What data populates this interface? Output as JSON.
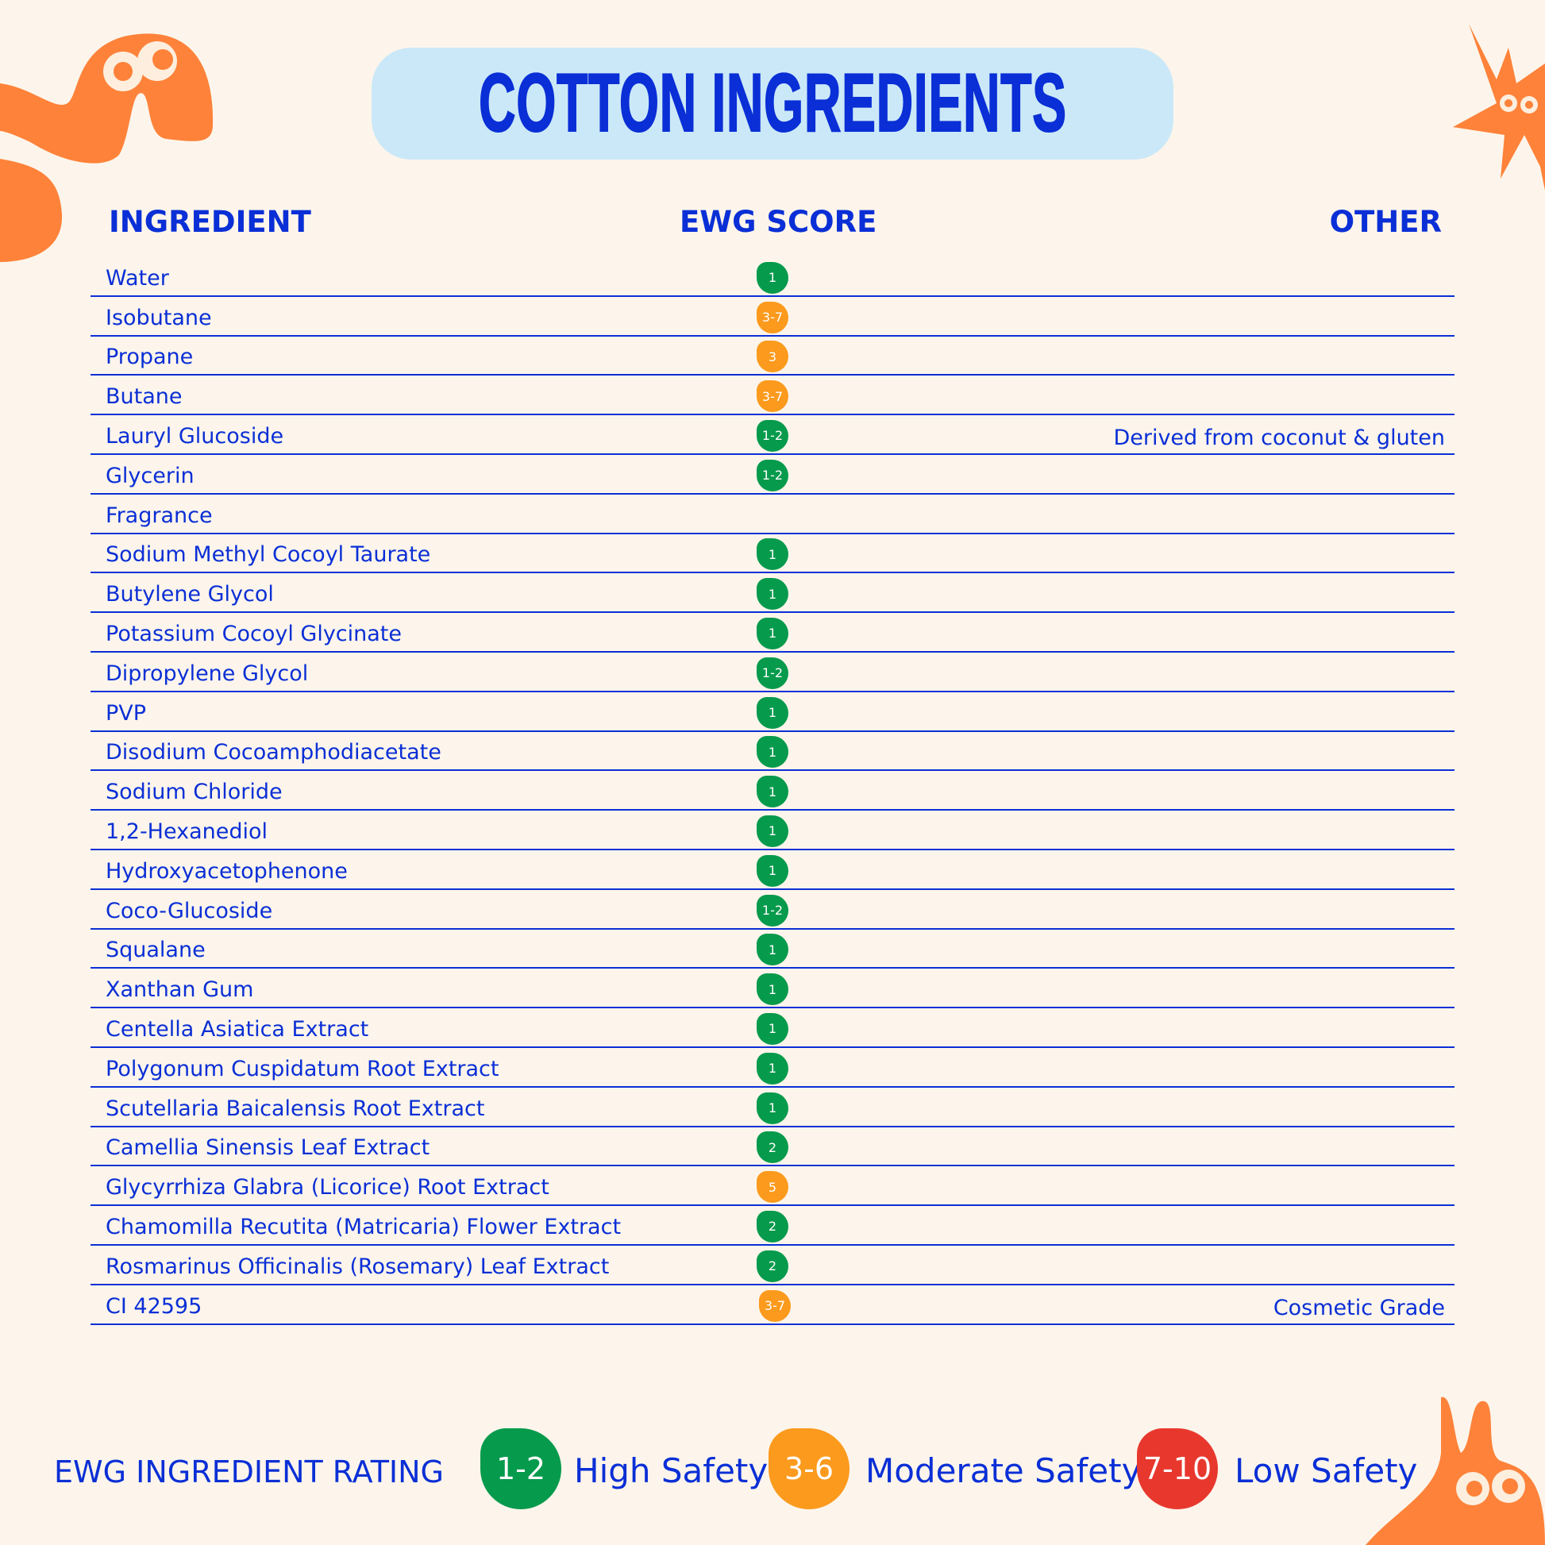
{
  "title": "COTTON INGREDIENTS",
  "headers": {
    "ingredient": "INGREDIENT",
    "score": "EWG SCORE",
    "other": "OTHER"
  },
  "colors": {
    "high": "#069a4c",
    "moderate": "#fb9a1d",
    "low": "#e8382e",
    "accent": "#0a2fd6",
    "decor": "#fe8239"
  },
  "rows": [
    {
      "name": "Water",
      "score": "1",
      "level": "high",
      "other": ""
    },
    {
      "name": "Isobutane",
      "score": "3-7",
      "level": "moderate",
      "other": ""
    },
    {
      "name": "Propane",
      "score": "3",
      "level": "moderate",
      "other": ""
    },
    {
      "name": "Butane",
      "score": "3-7",
      "level": "moderate",
      "other": ""
    },
    {
      "name": "Lauryl Glucoside",
      "score": "1-2",
      "level": "high",
      "other": "Derived from coconut & gluten"
    },
    {
      "name": "Glycerin",
      "score": "1-2",
      "level": "high",
      "other": ""
    },
    {
      "name": "Fragrance",
      "score": "",
      "level": "",
      "other": ""
    },
    {
      "name": "Sodium Methyl Cocoyl Taurate",
      "score": "1",
      "level": "high",
      "other": ""
    },
    {
      "name": "Butylene Glycol",
      "score": "1",
      "level": "high",
      "other": ""
    },
    {
      "name": "Potassium Cocoyl Glycinate",
      "score": "1",
      "level": "high",
      "other": ""
    },
    {
      "name": "Dipropylene Glycol",
      "score": "1-2",
      "level": "high",
      "other": ""
    },
    {
      "name": "PVP",
      "score": "1",
      "level": "high",
      "other": ""
    },
    {
      "name": "Disodium Cocoamphodiacetate",
      "score": "1",
      "level": "high",
      "other": ""
    },
    {
      "name": "Sodium Chloride",
      "score": "1",
      "level": "high",
      "other": ""
    },
    {
      "name": "1,2-Hexanediol",
      "score": "1",
      "level": "high",
      "other": ""
    },
    {
      "name": "Hydroxyacetophenone",
      "score": "1",
      "level": "high",
      "other": ""
    },
    {
      "name": "Coco-Glucoside",
      "score": "1-2",
      "level": "high",
      "other": ""
    },
    {
      "name": "Squalane",
      "score": "1",
      "level": "high",
      "other": ""
    },
    {
      "name": "Xanthan Gum",
      "score": "1",
      "level": "high",
      "other": ""
    },
    {
      "name": "Centella Asiatica Extract",
      "score": "1",
      "level": "high",
      "other": ""
    },
    {
      "name": "Polygonum Cuspidatum Root Extract",
      "score": "1",
      "level": "high",
      "other": ""
    },
    {
      "name": "Scutellaria Baicalensis Root Extract",
      "score": "1",
      "level": "high",
      "other": ""
    },
    {
      "name": "Camellia Sinensis Leaf Extract",
      "score": "2",
      "level": "high",
      "other": ""
    },
    {
      "name": "Glycyrrhiza Glabra (Licorice) Root Extract",
      "score": "5",
      "level": "moderate",
      "other": ""
    },
    {
      "name": "Chamomilla Recutita (Matricaria) Flower Extract",
      "score": "2",
      "level": "high",
      "other": ""
    },
    {
      "name": "Rosmarinus Officinalis (Rosemary) Leaf Extract",
      "score": "2",
      "level": "high",
      "other": ""
    },
    {
      "name": "CI 42595",
      "score": "3-7",
      "level": "moderate",
      "other": "Cosmetic Grade"
    }
  ],
  "legend": {
    "title": "EWG INGREDIENT RATING",
    "items": [
      {
        "range": "1-2",
        "label": "High Safety",
        "level": "high"
      },
      {
        "range": "3-6",
        "label": "Moderate Safety",
        "level": "moderate"
      },
      {
        "range": "7-10",
        "label": "Low Safety",
        "level": "low"
      }
    ]
  }
}
